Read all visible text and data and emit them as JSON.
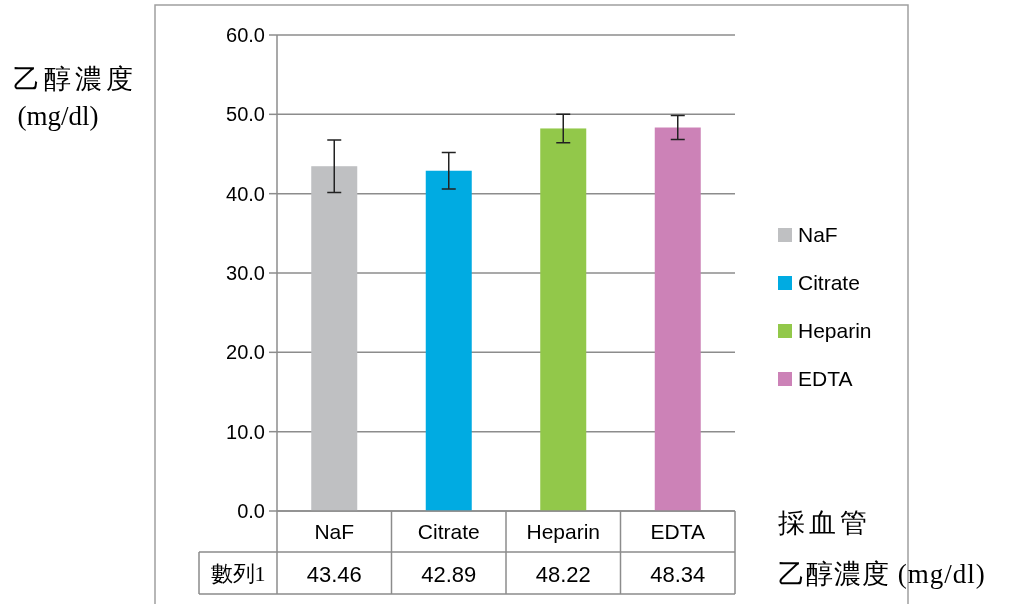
{
  "chart_data": {
    "type": "bar",
    "xlabel": "採血管",
    "ylabel": "乙醇濃度 (mg/dl)",
    "categories": [
      "NaF",
      "Citrate",
      "Heparin",
      "EDTA"
    ],
    "series": [
      {
        "name": "NaF",
        "color": "#bfc0c2",
        "values": [
          43.46,
          null,
          null,
          null
        ],
        "errors": [
          3.3,
          null,
          null,
          null
        ]
      },
      {
        "name": "Citrate",
        "color": "#00abe2",
        "values": [
          null,
          42.89,
          null,
          null
        ],
        "errors": [
          null,
          2.3,
          null,
          null
        ]
      },
      {
        "name": "Heparin",
        "color": "#92c84a",
        "values": [
          null,
          null,
          48.22,
          null
        ],
        "errors": [
          null,
          null,
          1.8,
          null
        ]
      },
      {
        "name": "EDTA",
        "color": "#cc82b7",
        "values": [
          null,
          null,
          null,
          48.34
        ],
        "errors": [
          null,
          null,
          null,
          1.5
        ]
      }
    ],
    "ylim": [
      0,
      60
    ],
    "yticks": [
      {
        "value": 0,
        "label": "0.0"
      },
      {
        "value": 10,
        "label": "10.0"
      },
      {
        "value": 20,
        "label": "20.0"
      },
      {
        "value": 30,
        "label": "30.0"
      },
      {
        "value": 40,
        "label": "40.0"
      },
      {
        "value": 50,
        "label": "50.0"
      },
      {
        "value": 60,
        "label": "60.0"
      }
    ],
    "grid": "y",
    "legend": "right",
    "data_labels": true,
    "annotations": [
      "數列1",
      "乙醇濃度 (mg/dl)"
    ]
  }
}
